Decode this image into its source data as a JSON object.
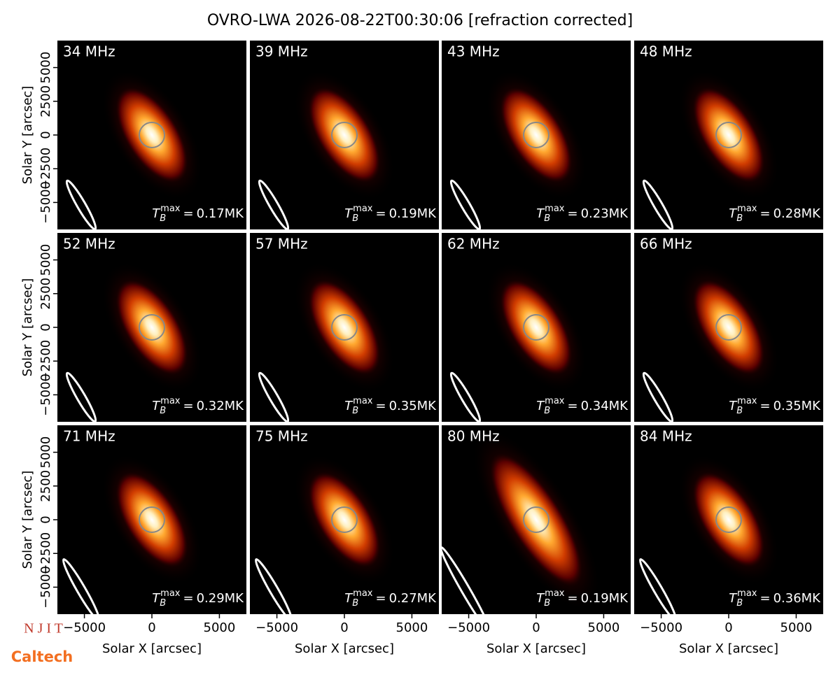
{
  "figure": {
    "title": "OVRO-LWA 2026-08-22T00:30:06 [refraction corrected]",
    "xlabel": "Solar X [arcsec]",
    "ylabel": "Solar Y [arcsec]",
    "xlim": [
      -7000,
      7000
    ],
    "ylim": [
      -7000,
      7000
    ],
    "xticks": [
      {
        "value": -5000,
        "label": "−5000"
      },
      0,
      5000
    ],
    "yticks": [
      {
        "value": -5000,
        "label": "−5000"
      },
      {
        "value": -2500,
        "label": "−2500"
      },
      0,
      2500,
      5000
    ],
    "tmax_label": {
      "symbol": "T",
      "sub": "B",
      "sup": "max",
      "equals": "="
    },
    "panels": [
      {
        "freq": "34 MHz",
        "tmax": "0.17MK"
      },
      {
        "freq": "39 MHz",
        "tmax": "0.19MK"
      },
      {
        "freq": "43 MHz",
        "tmax": "0.23MK"
      },
      {
        "freq": "48 MHz",
        "tmax": "0.28MK"
      },
      {
        "freq": "52 MHz",
        "tmax": "0.32MK"
      },
      {
        "freq": "57 MHz",
        "tmax": "0.35MK"
      },
      {
        "freq": "62 MHz",
        "tmax": "0.34MK"
      },
      {
        "freq": "66 MHz",
        "tmax": "0.35MK"
      },
      {
        "freq": "71 MHz",
        "tmax": "0.29MK"
      },
      {
        "freq": "75 MHz",
        "tmax": "0.27MK"
      },
      {
        "freq": "80 MHz",
        "tmax": "0.19MK"
      },
      {
        "freq": "84 MHz",
        "tmax": "0.36MK"
      }
    ],
    "logos": [
      "N J I T",
      "Caltech"
    ]
  }
}
